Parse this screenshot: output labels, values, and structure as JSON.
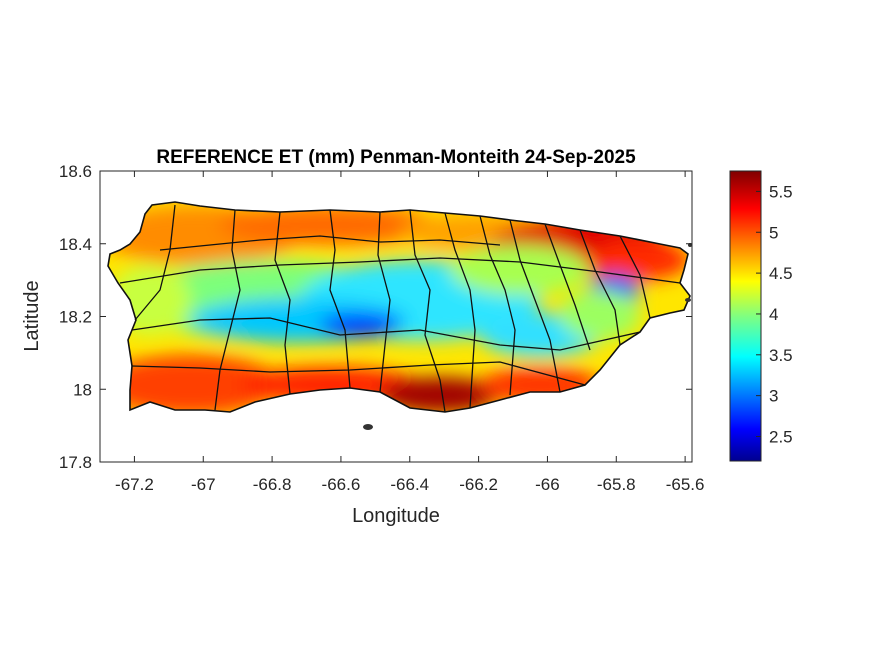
{
  "figure": {
    "title": "REFERENCE ET (mm) Penman-Monteith 24-Sep-2025",
    "xlabel": "Longitude",
    "ylabel": "Latitude"
  },
  "chart_data": {
    "type": "heatmap",
    "title": "REFERENCE ET (mm) Penman-Monteith 24-Sep-2025",
    "xlabel": "Longitude",
    "ylabel": "Latitude",
    "xlim": [
      -67.3,
      -65.58
    ],
    "ylim": [
      17.8,
      18.6
    ],
    "xticks": [
      -67.2,
      -67,
      -66.8,
      -66.6,
      -66.4,
      -66.2,
      -66,
      -65.8,
      -65.6
    ],
    "xtick_labels": [
      "-67.2",
      "-67",
      "-66.8",
      "-66.6",
      "-66.4",
      "-66.2",
      "-66",
      "-65.8",
      "-65.6"
    ],
    "yticks": [
      17.8,
      18,
      18.2,
      18.4,
      18.6
    ],
    "ytick_labels": [
      "17.8",
      "18",
      "18.2",
      "18.4",
      "18.6"
    ],
    "colorbar": {
      "colormap": "jet",
      "range": [
        2.2,
        5.75
      ],
      "ticks": [
        2.5,
        3,
        3.5,
        4,
        4.5,
        5,
        5.5
      ],
      "tick_labels": [
        "2.5",
        "3",
        "3.5",
        "4",
        "4.5",
        "5",
        "5.5"
      ]
    },
    "region": "Puerto Rico municipalities",
    "pattern": {
      "coastal_south": "5.3-5.7",
      "northeast": "5.0-5.6",
      "north_coast": "4.5-5.0",
      "central_mountains": "2.5-3.5",
      "eastern_lowland_pocket": "3.0",
      "west": "4.0-4.8"
    },
    "grid": false
  }
}
